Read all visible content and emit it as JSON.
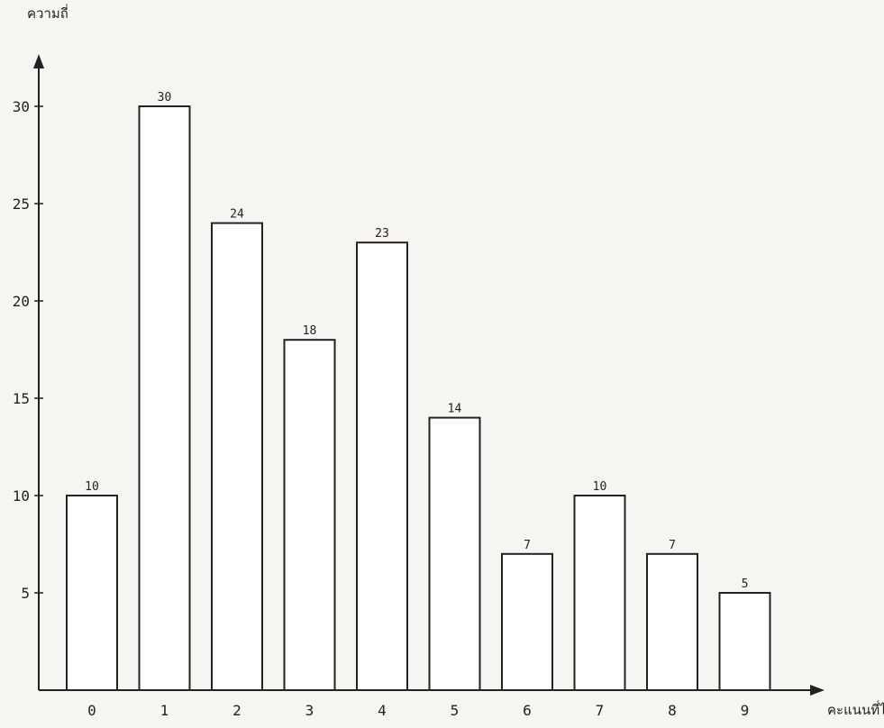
{
  "chart_data": {
    "type": "bar",
    "title": "",
    "ylabel": "ความถี่",
    "xlabel": "คะแนนที่ได้",
    "categories": [
      "0",
      "1",
      "2",
      "3",
      "4",
      "5",
      "6",
      "7",
      "8",
      "9"
    ],
    "values": [
      10,
      30,
      24,
      18,
      23,
      14,
      7,
      10,
      7,
      5
    ],
    "data_labels": [
      "10",
      "30",
      "24",
      "18",
      "23",
      "14",
      "7",
      "10",
      "7",
      "5"
    ],
    "yticks": [
      5,
      10,
      15,
      20,
      25,
      30
    ],
    "ylim": [
      0,
      32
    ],
    "grid": false,
    "legend": "none"
  }
}
